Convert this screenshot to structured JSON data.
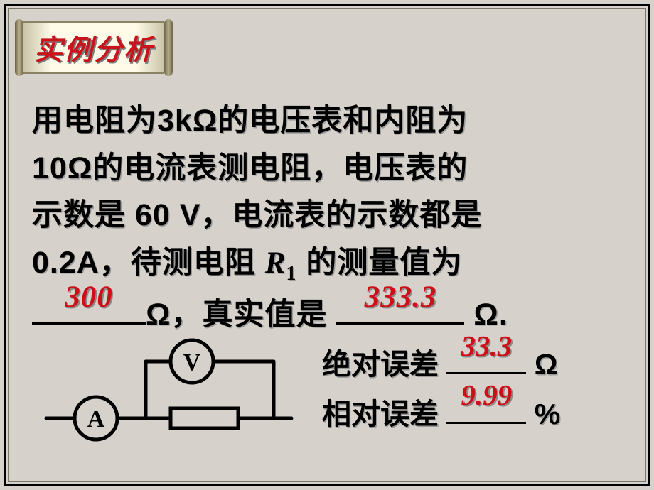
{
  "header": {
    "title": "实例分析"
  },
  "problem": {
    "line1": "用电阻为3kΩ的电压表和内阻为",
    "line2": "10Ω的电流表测电阻，电压表的",
    "line3_a": "示数是 60 V，电流表的示数都是",
    "line4_a": "0.2A，待测电阻 ",
    "line4_var": "R",
    "line4_sub": "1",
    "line4_b": " 的测量值为",
    "blank1_answer": "300",
    "line5_mid": "Ω，真实值是 ",
    "blank2_answer": "333.3",
    "line5_end": " Ω."
  },
  "errors": {
    "abs_label": "绝对误差 ",
    "abs_value": "33.3",
    "abs_unit": " Ω",
    "rel_label": "相对误差 ",
    "rel_value": "9.99",
    "rel_unit": " %"
  },
  "circuit": {
    "voltmeter_label": "V",
    "ammeter_label": "A",
    "stroke_color": "#000000",
    "stroke_width": 5,
    "bg_fill": "#d6d2cb"
  },
  "styling": {
    "page_bg": "#d6d2cb",
    "text_color": "#000000",
    "answer_color": "#cf0f17",
    "shadow_color": "#9a9a9a",
    "title_color": "#c8141a",
    "body_fontsize": 43,
    "title_fontsize": 40,
    "err_fontsize": 41
  }
}
